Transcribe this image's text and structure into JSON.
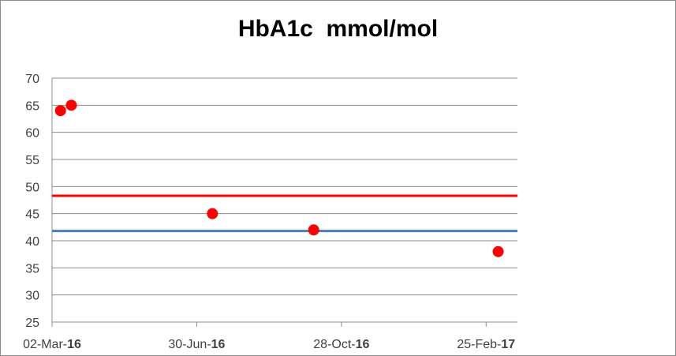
{
  "chart_data": {
    "type": "scatter",
    "title": "HbA1c  mmol/mol",
    "xlabel": "",
    "ylabel": "",
    "x_axis": {
      "type": "date",
      "range": [
        "2016-03-02",
        "2017-03-23"
      ],
      "ticks": [
        {
          "date": "2016-03-02",
          "label_day_month": "02-Mar-",
          "label_year": "16"
        },
        {
          "date": "2016-06-30",
          "label_day_month": "30-Jun-",
          "label_year": "16"
        },
        {
          "date": "2016-10-28",
          "label_day_month": "28-Oct-",
          "label_year": "16"
        },
        {
          "date": "2017-02-25",
          "label_day_month": "25-Feb-",
          "label_year": "17"
        }
      ]
    },
    "y_axis": {
      "range": [
        25,
        70
      ],
      "ticks": [
        25,
        30,
        35,
        40,
        45,
        50,
        55,
        60,
        65,
        70
      ]
    },
    "grid": true,
    "legend": "none",
    "series": [
      {
        "color": "#ff0000",
        "points": [
          {
            "x": "2016-03-09",
            "y": 64
          },
          {
            "x": "2016-03-18",
            "y": 65
          },
          {
            "x": "2016-07-13",
            "y": 45
          },
          {
            "x": "2016-10-05",
            "y": 42
          },
          {
            "x": "2017-03-07",
            "y": 38
          }
        ]
      }
    ],
    "reference_lines": [
      {
        "y": 48.3,
        "color": "#ff0000"
      },
      {
        "y": 41.8,
        "color": "#4a7ebb"
      }
    ]
  }
}
